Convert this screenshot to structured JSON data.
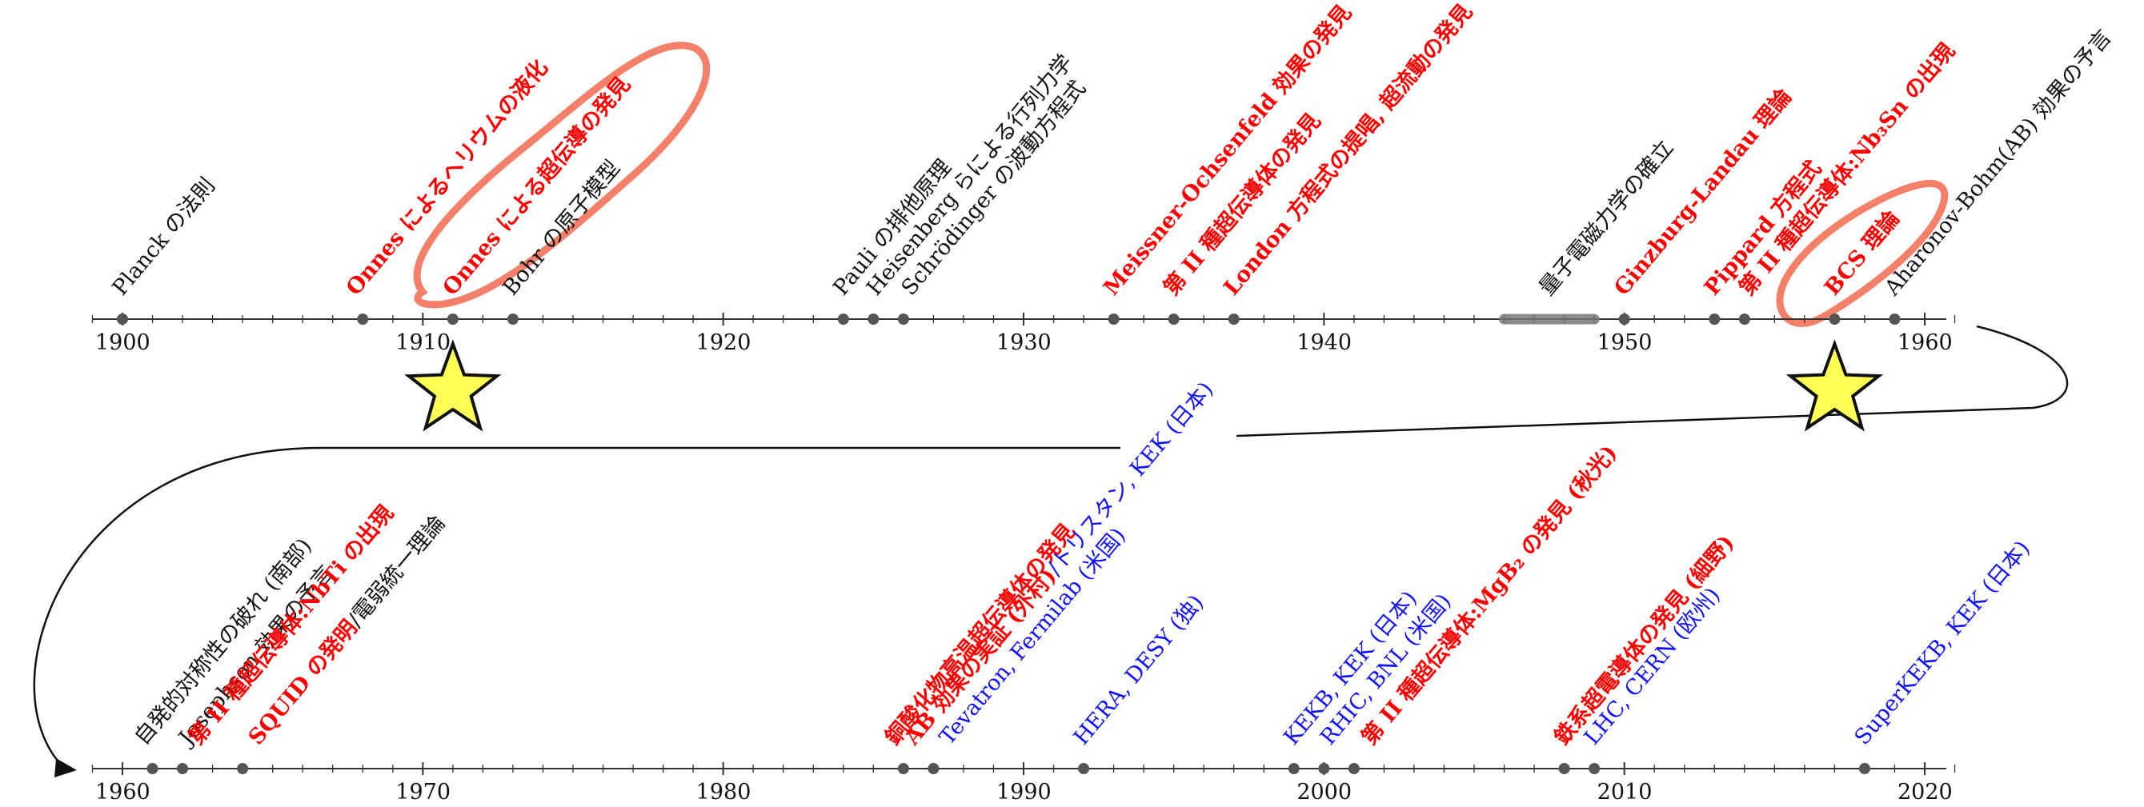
{
  "timeline_top": {
    "start_year": 1899,
    "end_year": 1961,
    "tick_labels": [
      "1900",
      "1910",
      "1920",
      "1930",
      "1940",
      "1950",
      "1960"
    ],
    "events": [
      {
        "year": 1900,
        "text": "Planck の法則",
        "color": "black",
        "dot": true
      },
      {
        "year": 1908,
        "text": "Onnes によるヘリウムの液化",
        "color": "red",
        "dot": true
      },
      {
        "year": 1911,
        "text": "Onnes による超伝導の発見",
        "color": "red",
        "dot": true
      },
      {
        "year": 1913,
        "text": "Bohr の原子模型",
        "color": "black",
        "dot": true
      },
      {
        "year": 1924,
        "text": "Pauli の排他原理",
        "color": "black",
        "dot": true
      },
      {
        "year": 1925,
        "text": "Heisenberg らによる行列力学",
        "color": "black",
        "dot": true
      },
      {
        "year": 1926,
        "text": "Schrödinger の波動方程式",
        "color": "black",
        "dot": true
      },
      {
        "year": 1933,
        "text": "Meissner-Ochsenfeld 効果の発見",
        "color": "red",
        "dot": true
      },
      {
        "year": 1935,
        "text": "第 II 種超伝導体の発見",
        "color": "red",
        "dot": true
      },
      {
        "year": 1937,
        "text": "London 方程式の提唱, 超流動の発見",
        "color": "red",
        "dot": true
      },
      {
        "year": 1947.5,
        "text": "量子電磁力学の確立",
        "color": "black",
        "dot": false,
        "range": [
          1946,
          1949
        ]
      },
      {
        "year": 1950,
        "text": "Ginzburg-Landau 理論",
        "color": "red",
        "dot": true
      },
      {
        "year": 1953,
        "text": "Pippard 方程式",
        "color": "red",
        "dot": true
      },
      {
        "year": 1954,
        "text": "第 II 種超伝導体:Nb₃Sn の出現",
        "color": "red",
        "dot": true
      },
      {
        "year": 1957,
        "text": "BCS 理論",
        "color": "red",
        "dot": true
      },
      {
        "year": 1959,
        "text": "Aharonov-Bohm(AB) 効果の予言",
        "color": "black",
        "dot": true
      }
    ],
    "star_years": [
      1911,
      1957
    ]
  },
  "timeline_bottom": {
    "start_year": 1959,
    "end_year": 2021,
    "tick_labels": [
      "1960",
      "1970",
      "1980",
      "1990",
      "2000",
      "2010",
      "2020"
    ],
    "events": [
      {
        "year": 1961,
        "text": "自発的対称性の破れ (南部)",
        "color": "black",
        "dot": true
      },
      {
        "year": 1962,
        "text": "Josephson 効果の予言",
        "color": "black",
        "dot": true
      },
      {
        "year": 1962,
        "text": "第 II 種超伝導体:NbTi の出現",
        "color": "red",
        "dot": false
      },
      {
        "year": 1964,
        "text": "SQUID の発明",
        "color": "red",
        "dot": true,
        "suffix": "/電弱統一理論"
      },
      {
        "year": 1986,
        "text": "銅酸化物高温超伝導体の発見",
        "color": "red",
        "dot": true
      },
      {
        "year": 1986,
        "text": "AB 効果の実証 (外村)",
        "color": "red",
        "dot": false,
        "suffix": "/トリスタン, KEK (日本)"
      },
      {
        "year": 1987,
        "text": "Tevatron, Fermilab (米国)",
        "color": "blue",
        "dot": true
      },
      {
        "year": 1992,
        "text": "HERA, DESY (独)",
        "color": "blue",
        "dot": true
      },
      {
        "year": 1999,
        "text": "KEKB, KEK (日本)",
        "color": "blue",
        "dot": true
      },
      {
        "year": 2000,
        "text": "RHIC, BNL (米国)",
        "color": "blue",
        "dot": true
      },
      {
        "year": 2001,
        "text": "第 II 種超伝導体:MgB₂ の発見 (秋光)",
        "color": "red",
        "dot": true
      },
      {
        "year": 2008,
        "text": "鉄系超電導体の発見 (細野)",
        "color": "red",
        "dot": true
      },
      {
        "year": 2009,
        "text": "LHC, CERN (欧州)",
        "color": "blue",
        "dot": true
      },
      {
        "year": 2018,
        "text": "SuperKEKB, KEK (日本)",
        "color": "blue",
        "dot": true
      }
    ]
  },
  "colors": {
    "red": "#ff0000",
    "black": "#111111",
    "blue": "#1010ff",
    "star_fill": "#ffff55",
    "highlight": "#f26a4f",
    "dot": "#555555"
  }
}
